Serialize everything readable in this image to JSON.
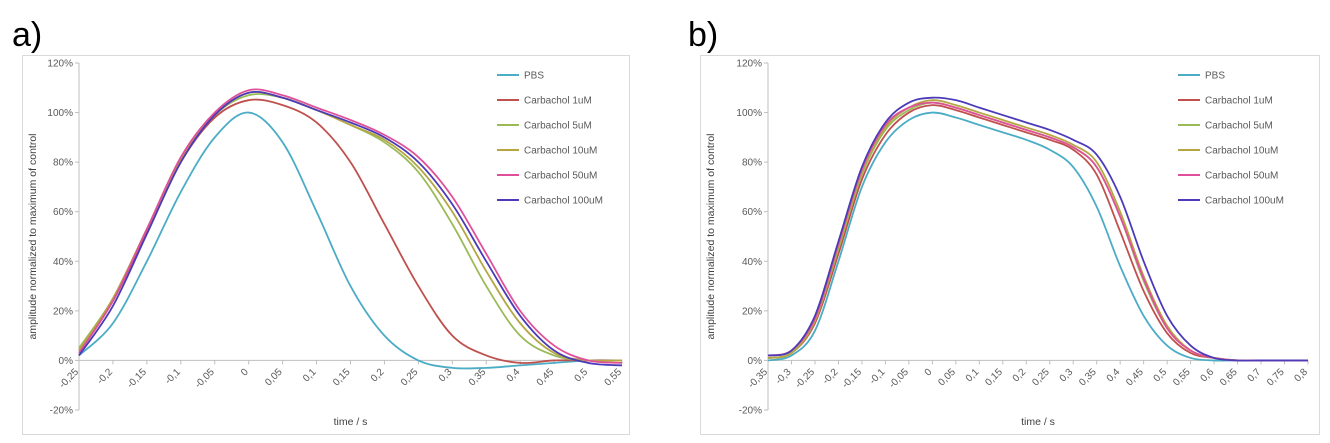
{
  "panels": [
    {
      "label": "a)"
    },
    {
      "label": "b)"
    }
  ],
  "chart_data": [
    {
      "type": "line",
      "xlabel": "time / s",
      "ylabel": "amplitude normalized to maximum of control",
      "xlim": [
        -0.25,
        0.55
      ],
      "ylim": [
        -0.2,
        1.2
      ],
      "xticks": [
        "-0,25",
        "-0,2",
        "-0,15",
        "-0,1",
        "-0,05",
        "0",
        "0,05",
        "0,1",
        "0,15",
        "0,2",
        "0,25",
        "0,3",
        "0,35",
        "0,4",
        "0,45",
        "0,5",
        "0,55"
      ],
      "yticks": [
        "-20%",
        "0%",
        "20%",
        "40%",
        "60%",
        "80%",
        "100%",
        "120%"
      ],
      "grid": false,
      "legend_position": "top-right",
      "series": [
        {
          "name": "PBS",
          "color": "#4BACC6",
          "x": [
            -0.25,
            -0.2,
            -0.15,
            -0.1,
            -0.05,
            0,
            0.05,
            0.1,
            0.15,
            0.2,
            0.25,
            0.3,
            0.35,
            0.4,
            0.45,
            0.5,
            0.55
          ],
          "y": [
            0.02,
            0.15,
            0.4,
            0.68,
            0.9,
            1.0,
            0.88,
            0.6,
            0.3,
            0.1,
            0.0,
            -0.03,
            -0.03,
            -0.02,
            -0.01,
            0.0,
            0.0
          ]
        },
        {
          "name": "Carbachol 1uM",
          "color": "#C0504D",
          "x": [
            -0.25,
            -0.2,
            -0.15,
            -0.1,
            -0.05,
            0,
            0.05,
            0.1,
            0.15,
            0.2,
            0.25,
            0.3,
            0.35,
            0.4,
            0.45,
            0.5,
            0.55
          ],
          "y": [
            0.04,
            0.24,
            0.52,
            0.8,
            0.98,
            1.05,
            1.03,
            0.96,
            0.8,
            0.55,
            0.3,
            0.1,
            0.02,
            -0.01,
            0.0,
            0.0,
            0.0
          ]
        },
        {
          "name": "Carbachol 5uM",
          "color": "#9BBB59",
          "x": [
            -0.25,
            -0.2,
            -0.15,
            -0.1,
            -0.05,
            0,
            0.05,
            0.1,
            0.15,
            0.2,
            0.25,
            0.3,
            0.35,
            0.4,
            0.45,
            0.5,
            0.55
          ],
          "y": [
            0.05,
            0.25,
            0.53,
            0.81,
            0.99,
            1.07,
            1.06,
            1.01,
            0.95,
            0.88,
            0.76,
            0.55,
            0.3,
            0.1,
            0.02,
            0.0,
            0.0
          ]
        },
        {
          "name": "Carbachol 10uM",
          "color": "#B5A642",
          "x": [
            -0.25,
            -0.2,
            -0.15,
            -0.1,
            -0.05,
            0,
            0.05,
            0.1,
            0.15,
            0.2,
            0.25,
            0.3,
            0.35,
            0.4,
            0.45,
            0.5,
            0.55
          ],
          "y": [
            0.04,
            0.25,
            0.53,
            0.81,
            0.99,
            1.08,
            1.06,
            1.01,
            0.95,
            0.89,
            0.78,
            0.6,
            0.36,
            0.15,
            0.03,
            0.0,
            0.0
          ]
        },
        {
          "name": "Carbachol 50uM",
          "color": "#E0509A",
          "x": [
            -0.25,
            -0.2,
            -0.15,
            -0.1,
            -0.05,
            0,
            0.05,
            0.1,
            0.15,
            0.2,
            0.25,
            0.3,
            0.35,
            0.4,
            0.45,
            0.5,
            0.55
          ],
          "y": [
            0.03,
            0.24,
            0.53,
            0.82,
            1.0,
            1.09,
            1.07,
            1.02,
            0.97,
            0.91,
            0.82,
            0.66,
            0.43,
            0.2,
            0.06,
            0.0,
            -0.01
          ]
        },
        {
          "name": "Carbachol 100uM",
          "color": "#4B3BB8",
          "x": [
            -0.25,
            -0.2,
            -0.15,
            -0.1,
            -0.05,
            0,
            0.05,
            0.1,
            0.15,
            0.2,
            0.25,
            0.3,
            0.35,
            0.4,
            0.45,
            0.5,
            0.55
          ],
          "y": [
            0.02,
            0.22,
            0.51,
            0.8,
            0.99,
            1.08,
            1.06,
            1.01,
            0.96,
            0.9,
            0.8,
            0.63,
            0.4,
            0.18,
            0.04,
            -0.01,
            -0.02
          ]
        }
      ]
    },
    {
      "type": "line",
      "xlabel": "time / s",
      "ylabel": "amplitude normalized to maximum of control",
      "xlim": [
        -0.35,
        0.8
      ],
      "ylim": [
        -0.2,
        1.2
      ],
      "xticks": [
        "-0,35",
        "-0,3",
        "-0,25",
        "-0,2",
        "-0,15",
        "-0,1",
        "-0,05",
        "0",
        "0,05",
        "0,1",
        "0,15",
        "0,2",
        "0,25",
        "0,3",
        "0,35",
        "0,4",
        "0,45",
        "0,5",
        "0,55",
        "0,6",
        "0,65",
        "0,7",
        "0,75",
        "0,8"
      ],
      "yticks": [
        "-20%",
        "0%",
        "20%",
        "40%",
        "60%",
        "80%",
        "100%",
        "120%"
      ],
      "grid": false,
      "legend_position": "top-right",
      "series": [
        {
          "name": "PBS",
          "color": "#4BACC6",
          "x": [
            -0.35,
            -0.3,
            -0.25,
            -0.2,
            -0.15,
            -0.1,
            -0.05,
            0,
            0.05,
            0.1,
            0.15,
            0.2,
            0.25,
            0.3,
            0.35,
            0.4,
            0.45,
            0.5,
            0.55,
            0.6,
            0.65,
            0.7,
            0.75,
            0.8
          ],
          "y": [
            0.0,
            0.02,
            0.12,
            0.4,
            0.7,
            0.88,
            0.97,
            1.0,
            0.98,
            0.95,
            0.92,
            0.89,
            0.85,
            0.78,
            0.62,
            0.38,
            0.18,
            0.06,
            0.01,
            0.0,
            0.0,
            0.0,
            0.0,
            0.0
          ]
        },
        {
          "name": "Carbachol 1uM",
          "color": "#C0504D",
          "x": [
            -0.35,
            -0.3,
            -0.25,
            -0.2,
            -0.15,
            -0.1,
            -0.05,
            0,
            0.05,
            0.1,
            0.15,
            0.2,
            0.25,
            0.3,
            0.35,
            0.4,
            0.45,
            0.5,
            0.55,
            0.6,
            0.65,
            0.7,
            0.75,
            0.8
          ],
          "y": [
            0.01,
            0.03,
            0.15,
            0.43,
            0.73,
            0.91,
            1.0,
            1.03,
            1.01,
            0.98,
            0.95,
            0.92,
            0.89,
            0.85,
            0.75,
            0.52,
            0.28,
            0.11,
            0.03,
            0.01,
            0.0,
            0.0,
            0.0,
            0.0
          ]
        },
        {
          "name": "Carbachol 5uM",
          "color": "#9BBB59",
          "x": [
            -0.35,
            -0.3,
            -0.25,
            -0.2,
            -0.15,
            -0.1,
            -0.05,
            0,
            0.05,
            0.1,
            0.15,
            0.2,
            0.25,
            0.3,
            0.35,
            0.4,
            0.45,
            0.5,
            0.55,
            0.6,
            0.65,
            0.7,
            0.75,
            0.8
          ],
          "y": [
            0.01,
            0.03,
            0.16,
            0.45,
            0.75,
            0.93,
            1.01,
            1.04,
            1.02,
            0.99,
            0.96,
            0.93,
            0.9,
            0.86,
            0.78,
            0.58,
            0.32,
            0.13,
            0.04,
            0.01,
            0.0,
            0.0,
            0.0,
            0.0
          ]
        },
        {
          "name": "Carbachol 10uM",
          "color": "#B5A642",
          "x": [
            -0.35,
            -0.3,
            -0.25,
            -0.2,
            -0.15,
            -0.1,
            -0.05,
            0,
            0.05,
            0.1,
            0.15,
            0.2,
            0.25,
            0.3,
            0.35,
            0.4,
            0.45,
            0.5,
            0.55,
            0.6,
            0.65,
            0.7,
            0.75,
            0.8
          ],
          "y": [
            0.01,
            0.03,
            0.16,
            0.46,
            0.76,
            0.94,
            1.02,
            1.05,
            1.03,
            1.0,
            0.97,
            0.94,
            0.91,
            0.87,
            0.8,
            0.6,
            0.34,
            0.14,
            0.04,
            0.01,
            0.0,
            0.0,
            0.0,
            0.0
          ]
        },
        {
          "name": "Carbachol 50uM",
          "color": "#E0509A",
          "x": [
            -0.35,
            -0.3,
            -0.25,
            -0.2,
            -0.15,
            -0.1,
            -0.05,
            0,
            0.05,
            0.1,
            0.15,
            0.2,
            0.25,
            0.3,
            0.35,
            0.4,
            0.45,
            0.5,
            0.55,
            0.6,
            0.65,
            0.7,
            0.75,
            0.8
          ],
          "y": [
            0.02,
            0.04,
            0.17,
            0.47,
            0.77,
            0.95,
            1.02,
            1.04,
            1.02,
            0.99,
            0.96,
            0.93,
            0.9,
            0.86,
            0.78,
            0.58,
            0.33,
            0.13,
            0.04,
            0.01,
            0.0,
            0.0,
            0.0,
            0.0
          ]
        },
        {
          "name": "Carbachol 100uM",
          "color": "#4B3BB8",
          "x": [
            -0.35,
            -0.3,
            -0.25,
            -0.2,
            -0.15,
            -0.1,
            -0.05,
            0,
            0.05,
            0.1,
            0.15,
            0.2,
            0.25,
            0.3,
            0.35,
            0.4,
            0.45,
            0.5,
            0.55,
            0.6,
            0.65,
            0.7,
            0.75,
            0.8
          ],
          "y": [
            0.02,
            0.04,
            0.18,
            0.48,
            0.78,
            0.96,
            1.04,
            1.06,
            1.05,
            1.02,
            0.99,
            0.96,
            0.93,
            0.89,
            0.83,
            0.66,
            0.4,
            0.18,
            0.06,
            0.01,
            0.0,
            0.0,
            0.0,
            0.0
          ]
        }
      ]
    }
  ]
}
